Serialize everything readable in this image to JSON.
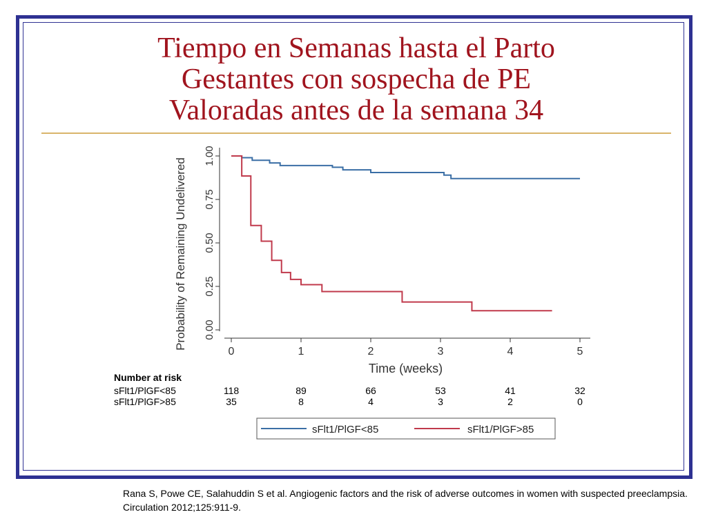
{
  "slide": {
    "title_lines": [
      "Tiempo en Semanas hasta el Parto",
      "Gestantes con sospecha de PE",
      "Valoradas antes de la semana 34"
    ],
    "citation": "Rana S, Powe CE, Salahuddin S et al. Angiogenic factors and the risk of  adverse outcomes in women with suspected preeclampsia. Circulation 2012;125:911-9."
  },
  "chart_data": {
    "type": "line",
    "title": "",
    "xlabel": "Time (weeks)",
    "ylabel": "Probability of Remaining Undelivered",
    "xlim": [
      0,
      5
    ],
    "ylim": [
      0,
      1
    ],
    "x_ticks": [
      "0",
      "1",
      "2",
      "3",
      "4",
      "5"
    ],
    "y_ticks": [
      "0.00",
      "0.25",
      "0.50",
      "0.75",
      "1.00"
    ],
    "grid": false,
    "legend_position": "bottom",
    "series": [
      {
        "name": "sFlt1/PlGF<85",
        "color": "#3a6ea5",
        "step_points": [
          [
            0,
            1.0
          ],
          [
            0.15,
            0.99
          ],
          [
            0.3,
            0.975
          ],
          [
            0.55,
            0.96
          ],
          [
            0.7,
            0.945
          ],
          [
            1.45,
            0.935
          ],
          [
            1.6,
            0.92
          ],
          [
            2.0,
            0.905
          ],
          [
            3.05,
            0.89
          ],
          [
            3.15,
            0.87
          ],
          [
            5.0,
            0.87
          ]
        ]
      },
      {
        "name": "sFlt1/PlGF>85",
        "color": "#c0394b",
        "step_points": [
          [
            0,
            1.0
          ],
          [
            0.15,
            0.885
          ],
          [
            0.28,
            0.6
          ],
          [
            0.43,
            0.51
          ],
          [
            0.58,
            0.4
          ],
          [
            0.72,
            0.33
          ],
          [
            0.85,
            0.29
          ],
          [
            1.0,
            0.26
          ],
          [
            1.3,
            0.22
          ],
          [
            2.45,
            0.16
          ],
          [
            3.45,
            0.11
          ],
          [
            4.6,
            0.11
          ]
        ]
      }
    ],
    "risk_table": {
      "header": "Number at risk",
      "rows": [
        {
          "label": "sFlt1/PlGF<85",
          "values": [
            "118",
            "89",
            "66",
            "53",
            "41",
            "32"
          ]
        },
        {
          "label": "sFlt1/PlGF>85",
          "values": [
            "35",
            "8",
            "4",
            "3",
            "2",
            "0"
          ]
        }
      ]
    }
  }
}
